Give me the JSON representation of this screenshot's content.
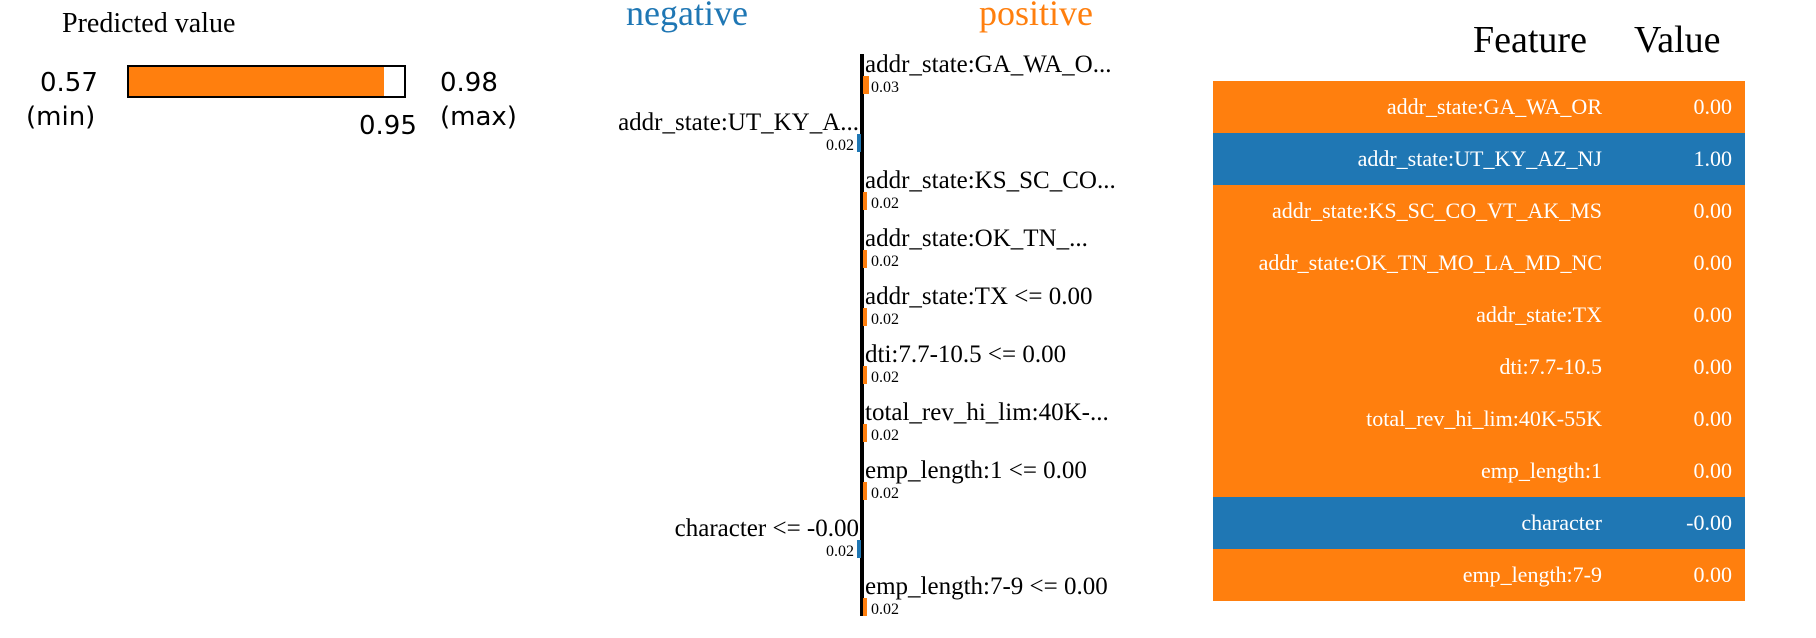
{
  "predicted": {
    "title": "Predicted value",
    "min": 0.57,
    "min_text": "0.57",
    "min_label": "(min)",
    "max": 0.98,
    "max_text": "0.98",
    "max_label": "(max)",
    "value": 0.95,
    "value_text": "0.95",
    "bar_color": "#ff7f0e"
  },
  "colors": {
    "negative": "#1f77b4",
    "positive": "#ff7f0e"
  },
  "chart_data": {
    "type": "bar",
    "orientation": "horizontal",
    "negative_label": "negative",
    "positive_label": "positive",
    "series": [
      {
        "label": "addr_state:GA_WA_O...",
        "value": 0.03,
        "value_text": "0.03",
        "side": "positive"
      },
      {
        "label": "addr_state:UT_KY_A...",
        "value": -0.02,
        "value_text": "0.02",
        "side": "negative"
      },
      {
        "label": "addr_state:KS_SC_CO...",
        "value": 0.02,
        "value_text": "0.02",
        "side": "positive"
      },
      {
        "label": "addr_state:OK_TN_...",
        "value": 0.02,
        "value_text": "0.02",
        "side": "positive"
      },
      {
        "label": "addr_state:TX <= 0.00",
        "value": 0.02,
        "value_text": "0.02",
        "side": "positive"
      },
      {
        "label": "dti:7.7-10.5 <= 0.00",
        "value": 0.02,
        "value_text": "0.02",
        "side": "positive"
      },
      {
        "label": "total_rev_hi_lim:40K-...",
        "value": 0.02,
        "value_text": "0.02",
        "side": "positive"
      },
      {
        "label": "emp_length:1 <= 0.00",
        "value": 0.02,
        "value_text": "0.02",
        "side": "positive"
      },
      {
        "label": "character <= -0.00",
        "value": -0.02,
        "value_text": "0.02",
        "side": "negative"
      },
      {
        "label": "emp_length:7-9 <= 0.00",
        "value": 0.02,
        "value_text": "0.02",
        "side": "positive"
      }
    ]
  },
  "table": {
    "headers": {
      "feature": "Feature",
      "value": "Value"
    },
    "rows": [
      {
        "feature": "addr_state:GA_WA_OR",
        "value": "0.00",
        "side": "positive"
      },
      {
        "feature": "addr_state:UT_KY_AZ_NJ",
        "value": "1.00",
        "side": "negative"
      },
      {
        "feature": "addr_state:KS_SC_CO_VT_AK_MS",
        "value": "0.00",
        "side": "positive"
      },
      {
        "feature": "addr_state:OK_TN_MO_LA_MD_NC",
        "value": "0.00",
        "side": "positive"
      },
      {
        "feature": "addr_state:TX",
        "value": "0.00",
        "side": "positive"
      },
      {
        "feature": "dti:7.7-10.5",
        "value": "0.00",
        "side": "positive"
      },
      {
        "feature": "total_rev_hi_lim:40K-55K",
        "value": "0.00",
        "side": "positive"
      },
      {
        "feature": "emp_length:1",
        "value": "0.00",
        "side": "positive"
      },
      {
        "feature": "character",
        "value": "-0.00",
        "side": "negative"
      },
      {
        "feature": "emp_length:7-9",
        "value": "0.00",
        "side": "positive"
      }
    ]
  }
}
